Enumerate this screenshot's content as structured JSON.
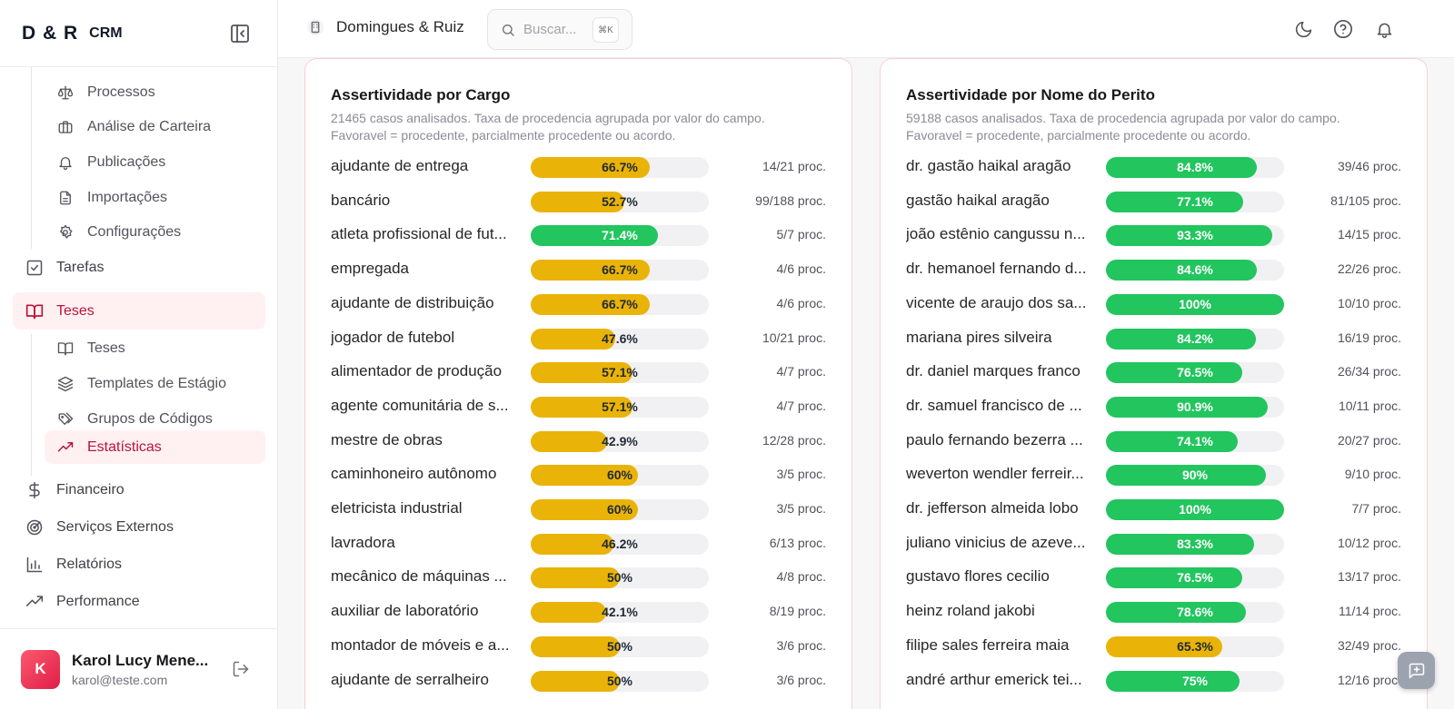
{
  "brand": {
    "logo": "D & R",
    "sub": "CRM"
  },
  "sidebar": {
    "subitems_top": [
      {
        "label": "Processos",
        "icon": "scale-icon"
      },
      {
        "label": "Análise de Carteira",
        "icon": "briefcase-icon"
      },
      {
        "label": "Publicações",
        "icon": "bell-icon"
      },
      {
        "label": "Importações",
        "icon": "file-icon"
      },
      {
        "label": "Configurações",
        "icon": "gear-icon"
      }
    ],
    "tarefas": "Tarefas",
    "teses": "Teses",
    "teses_sub": [
      {
        "label": "Teses",
        "icon": "book-icon"
      },
      {
        "label": "Templates de Estágio",
        "icon": "layers-icon"
      },
      {
        "label": "Grupos de Códigos",
        "icon": "tags-icon"
      },
      {
        "label": "Estatísticas",
        "icon": "trending-icon"
      }
    ],
    "bottom_items": [
      {
        "label": "Financeiro",
        "icon": "dollar-icon"
      },
      {
        "label": "Serviços Externos",
        "icon": "radar-icon"
      },
      {
        "label": "Relatórios",
        "icon": "bar-chart-icon"
      },
      {
        "label": "Performance",
        "icon": "trending-icon"
      }
    ]
  },
  "user": {
    "initial": "K",
    "name": "Karol Lucy Mene...",
    "email": "karol@teste.com"
  },
  "header": {
    "org": "Domingues & Ruiz",
    "search_placeholder": "Buscar...",
    "shortcut": "⌘K"
  },
  "colors": {
    "green": "#22c55e",
    "yellow": "#eab308",
    "accent": "#e11d48"
  },
  "cards": [
    {
      "title": "Assertividade por Cargo",
      "desc": "21465 casos analisados. Taxa de procedencia agrupada por valor do campo. Favoravel = procedente, parcialmente procedente ou acordo.",
      "rows": [
        {
          "label": "ajudante de entrega",
          "pct": 66.7,
          "pct_text": "66.7%",
          "color": "yellow",
          "count": "14/21 proc."
        },
        {
          "label": "bancário",
          "pct": 52.7,
          "pct_text": "52.7%",
          "color": "yellow",
          "count": "99/188 proc."
        },
        {
          "label": "atleta profissional de fut...",
          "pct": 71.4,
          "pct_text": "71.4%",
          "color": "green",
          "count": "5/7 proc."
        },
        {
          "label": "empregada",
          "pct": 66.7,
          "pct_text": "66.7%",
          "color": "yellow",
          "count": "4/6 proc."
        },
        {
          "label": "ajudante de distribuição",
          "pct": 66.7,
          "pct_text": "66.7%",
          "color": "yellow",
          "count": "4/6 proc."
        },
        {
          "label": "jogador de futebol",
          "pct": 47.6,
          "pct_text": "47.6%",
          "color": "yellow",
          "count": "10/21 proc."
        },
        {
          "label": "alimentador de produção",
          "pct": 57.1,
          "pct_text": "57.1%",
          "color": "yellow",
          "count": "4/7 proc."
        },
        {
          "label": "agente comunitária de s...",
          "pct": 57.1,
          "pct_text": "57.1%",
          "color": "yellow",
          "count": "4/7 proc."
        },
        {
          "label": "mestre de obras",
          "pct": 42.9,
          "pct_text": "42.9%",
          "color": "yellow",
          "count": "12/28 proc."
        },
        {
          "label": "caminhoneiro autônomo",
          "pct": 60,
          "pct_text": "60%",
          "color": "yellow",
          "count": "3/5 proc."
        },
        {
          "label": "eletricista industrial",
          "pct": 60,
          "pct_text": "60%",
          "color": "yellow",
          "count": "3/5 proc."
        },
        {
          "label": "lavradora",
          "pct": 46.2,
          "pct_text": "46.2%",
          "color": "yellow",
          "count": "6/13 proc."
        },
        {
          "label": "mecânico de máquinas ...",
          "pct": 50,
          "pct_text": "50%",
          "color": "yellow",
          "count": "4/8 proc."
        },
        {
          "label": "auxiliar de laboratório",
          "pct": 42.1,
          "pct_text": "42.1%",
          "color": "yellow",
          "count": "8/19 proc."
        },
        {
          "label": "montador de móveis e a...",
          "pct": 50,
          "pct_text": "50%",
          "color": "yellow",
          "count": "3/6 proc."
        },
        {
          "label": "ajudante de serralheiro",
          "pct": 50,
          "pct_text": "50%",
          "color": "yellow",
          "count": "3/6 proc."
        }
      ]
    },
    {
      "title": "Assertividade por Nome do Perito",
      "desc": "59188 casos analisados. Taxa de procedencia agrupada por valor do campo. Favoravel = procedente, parcialmente procedente ou acordo.",
      "rows": [
        {
          "label": "dr. gastão haikal aragão",
          "pct": 84.8,
          "pct_text": "84.8%",
          "color": "green",
          "count": "39/46 proc."
        },
        {
          "label": "gastão haikal aragão",
          "pct": 77.1,
          "pct_text": "77.1%",
          "color": "green",
          "count": "81/105 proc."
        },
        {
          "label": "joão estênio cangussu n...",
          "pct": 93.3,
          "pct_text": "93.3%",
          "color": "green",
          "count": "14/15 proc."
        },
        {
          "label": "dr. hemanoel fernando d...",
          "pct": 84.6,
          "pct_text": "84.6%",
          "color": "green",
          "count": "22/26 proc."
        },
        {
          "label": "vicente de araujo dos sa...",
          "pct": 100,
          "pct_text": "100%",
          "color": "green",
          "count": "10/10 proc."
        },
        {
          "label": "mariana pires silveira",
          "pct": 84.2,
          "pct_text": "84.2%",
          "color": "green",
          "count": "16/19 proc."
        },
        {
          "label": "dr. daniel marques franco",
          "pct": 76.5,
          "pct_text": "76.5%",
          "color": "green",
          "count": "26/34 proc."
        },
        {
          "label": "dr. samuel francisco de ...",
          "pct": 90.9,
          "pct_text": "90.9%",
          "color": "green",
          "count": "10/11 proc."
        },
        {
          "label": "paulo fernando bezerra ...",
          "pct": 74.1,
          "pct_text": "74.1%",
          "color": "green",
          "count": "20/27 proc."
        },
        {
          "label": "weverton wendler ferreir...",
          "pct": 90,
          "pct_text": "90%",
          "color": "green",
          "count": "9/10 proc."
        },
        {
          "label": "dr. jefferson almeida lobo",
          "pct": 100,
          "pct_text": "100%",
          "color": "green",
          "count": "7/7 proc."
        },
        {
          "label": "juliano vinicius de azeve...",
          "pct": 83.3,
          "pct_text": "83.3%",
          "color": "green",
          "count": "10/12 proc."
        },
        {
          "label": "gustavo flores cecilio",
          "pct": 76.5,
          "pct_text": "76.5%",
          "color": "green",
          "count": "13/17 proc."
        },
        {
          "label": "heinz roland jakobi",
          "pct": 78.6,
          "pct_text": "78.6%",
          "color": "green",
          "count": "11/14 proc."
        },
        {
          "label": "filipe sales ferreira maia",
          "pct": 65.3,
          "pct_text": "65.3%",
          "color": "yellow",
          "count": "32/49 proc."
        },
        {
          "label": "andré arthur emerick tei...",
          "pct": 75,
          "pct_text": "75%",
          "color": "green",
          "count": "12/16 proc."
        }
      ]
    }
  ]
}
